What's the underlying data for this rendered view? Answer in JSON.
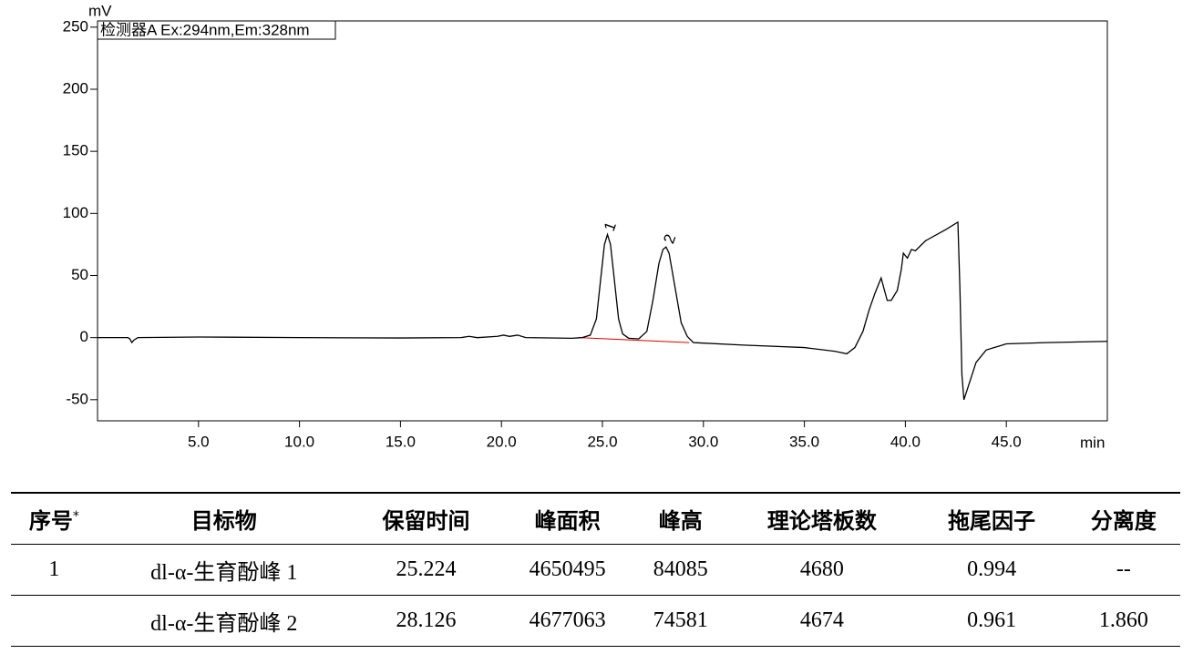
{
  "chart_data": {
    "type": "line",
    "y_unit": "mV",
    "x_unit": "min",
    "xlim": [
      0,
      50
    ],
    "ylim": [
      -67,
      255
    ],
    "xticks": [
      {
        "value": 5,
        "label": "5.0"
      },
      {
        "value": 10,
        "label": "10.0"
      },
      {
        "value": 15,
        "label": "15.0"
      },
      {
        "value": 20,
        "label": "20.0"
      },
      {
        "value": 25,
        "label": "25.0"
      },
      {
        "value": 30,
        "label": "30.0"
      },
      {
        "value": 35,
        "label": "35.0"
      },
      {
        "value": 40,
        "label": "40.0"
      },
      {
        "value": 45,
        "label": "45.0"
      }
    ],
    "yticks": [
      -50,
      0,
      50,
      100,
      150,
      200,
      250
    ],
    "series": [
      {
        "name": "检测器A Ex:294nm,Em:328nm",
        "color": "#000000",
        "x": [
          0,
          1.5,
          1.6,
          1.7,
          1.8,
          2,
          5,
          10,
          15,
          18,
          18.4,
          18.8,
          19.8,
          20.1,
          20.4,
          20.8,
          21.2,
          23.5,
          24,
          24.4,
          24.7,
          24.9,
          25.1,
          25.25,
          25.4,
          25.6,
          25.8,
          26.0,
          26.3,
          26.8,
          27.2,
          27.5,
          27.8,
          28.0,
          28.15,
          28.3,
          28.6,
          28.9,
          29.2,
          29.5,
          32,
          35,
          36.5,
          37.1,
          37.5,
          37.9,
          38.2,
          38.5,
          38.8,
          38.9,
          39.1,
          39.3,
          39.6,
          39.8,
          39.9,
          40.1,
          40.3,
          40.5,
          41,
          42,
          42.6,
          42.7,
          42.8,
          42.9,
          43.1,
          43.5,
          44,
          45,
          47,
          50
        ],
        "values": [
          0,
          0,
          -1,
          -4,
          -2,
          0,
          0.5,
          0,
          -0.3,
          0,
          1,
          0,
          1,
          2,
          1,
          2,
          0,
          -0.5,
          0,
          2,
          15,
          45,
          75,
          83,
          75,
          45,
          15,
          3,
          -0.5,
          -1,
          5,
          30,
          60,
          71,
          73,
          68,
          40,
          12,
          1,
          -4,
          -6,
          -8,
          -11,
          -13,
          -8,
          5,
          22,
          36,
          48,
          42,
          30,
          30,
          38,
          55,
          68,
          64,
          71,
          70,
          78,
          87,
          93,
          40,
          -30,
          -50,
          -40,
          -20,
          -10,
          -5,
          -4,
          -3
        ]
      }
    ],
    "baseline": {
      "color": "#e00000",
      "x": [
        23.8,
        29.3
      ],
      "values": [
        0,
        -4
      ]
    },
    "annotations": [
      {
        "text": "1",
        "x": 25.35,
        "y": 86
      },
      {
        "text": "2",
        "x": 28.3,
        "y": 76
      }
    ]
  },
  "table": {
    "header": [
      "序号",
      "目标物",
      "保留时间",
      "峰面积",
      "峰高",
      "理论塔板数",
      "拖尾因子",
      "分离度"
    ],
    "header_mark": "*",
    "rows": [
      [
        "1",
        "dl-α-生育酚峰 1",
        "25.224",
        "4650495",
        "84085",
        "4680",
        "0.994",
        "--"
      ],
      [
        null,
        "dl-α-生育酚峰 2",
        "28.126",
        "4677063",
        "74581",
        "4674",
        "0.961",
        "1.860"
      ]
    ]
  }
}
